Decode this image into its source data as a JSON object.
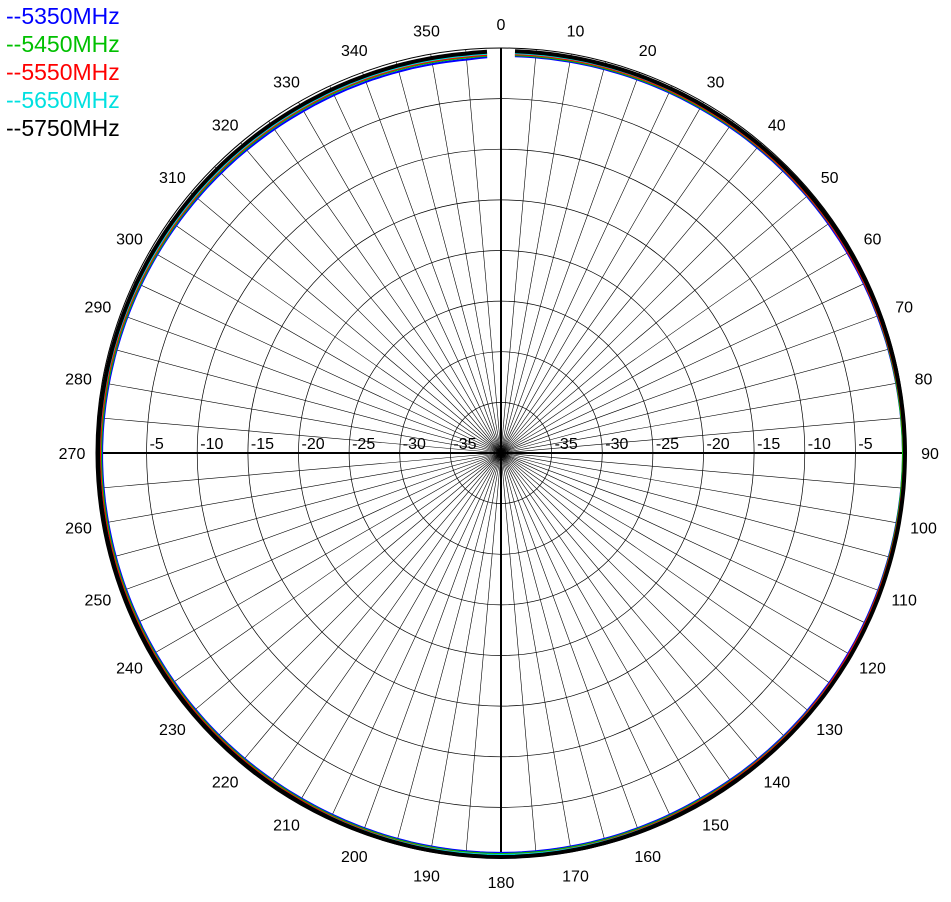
{
  "chart_data": {
    "type": "polar-line",
    "title": "",
    "angle_unit": "degrees",
    "angle_ticks": [
      "0",
      "10",
      "20",
      "30",
      "40",
      "50",
      "60",
      "70",
      "80",
      "90",
      "100",
      "110",
      "120",
      "130",
      "140",
      "150",
      "160",
      "170",
      "180",
      "190",
      "200",
      "210",
      "220",
      "230",
      "240",
      "250",
      "260",
      "270",
      "280",
      "290",
      "300",
      "310",
      "320",
      "330",
      "340",
      "350"
    ],
    "radial_ticks": [
      "-35",
      "-30",
      "-25",
      "-20",
      "-15",
      "-10",
      "-5"
    ],
    "radial_range": [
      -40,
      0
    ],
    "grid": true,
    "legend_position": "top-left",
    "series": [
      {
        "name": "--5350MHz",
        "color": "#0000ff",
        "angles": [
          0,
          30,
          60,
          90,
          120,
          150,
          180,
          210,
          240,
          270,
          300,
          330,
          355
        ],
        "values": [
          -0.8,
          -0.7,
          -0.5,
          -0.3,
          -0.4,
          -0.6,
          -0.5,
          -0.6,
          -0.6,
          -0.6,
          -0.8,
          -1.0,
          -1.0
        ]
      },
      {
        "name": "--5450MHz",
        "color": "#00c000",
        "angles": [
          0,
          30,
          60,
          90,
          120,
          150,
          180,
          210,
          240,
          270,
          300,
          330,
          355
        ],
        "values": [
          -0.7,
          -0.6,
          -0.4,
          -0.3,
          -0.3,
          -0.5,
          -0.4,
          -0.5,
          -0.5,
          -0.5,
          -0.7,
          -0.8,
          -0.8
        ]
      },
      {
        "name": "--5550MHz",
        "color": "#ff0000",
        "angles": [
          0,
          30,
          60,
          90,
          120,
          150,
          180,
          210,
          240,
          270,
          300,
          330,
          355
        ],
        "values": [
          -0.6,
          -0.5,
          -0.4,
          -0.2,
          -0.3,
          -0.4,
          -0.3,
          -0.4,
          -0.4,
          -0.4,
          -0.6,
          -0.7,
          -0.7
        ]
      },
      {
        "name": "--5650MHz",
        "color": "#00e0e0",
        "angles": [
          0,
          30,
          60,
          90,
          120,
          150,
          180,
          210,
          240,
          270,
          300,
          330,
          355
        ],
        "values": [
          -0.5,
          -0.4,
          -0.3,
          -0.1,
          -0.2,
          -0.3,
          -0.3,
          -0.3,
          -0.3,
          -0.3,
          -0.5,
          -0.6,
          -0.6
        ]
      },
      {
        "name": "--5750MHz",
        "color": "#000000",
        "angles": [
          0,
          30,
          60,
          90,
          120,
          150,
          180,
          210,
          240,
          270,
          300,
          330,
          355
        ],
        "values": [
          -0.3,
          -0.3,
          -0.2,
          -0.1,
          -0.1,
          -0.2,
          -0.1,
          -0.2,
          -0.2,
          -0.2,
          -0.3,
          -0.4,
          -0.4
        ]
      }
    ]
  }
}
